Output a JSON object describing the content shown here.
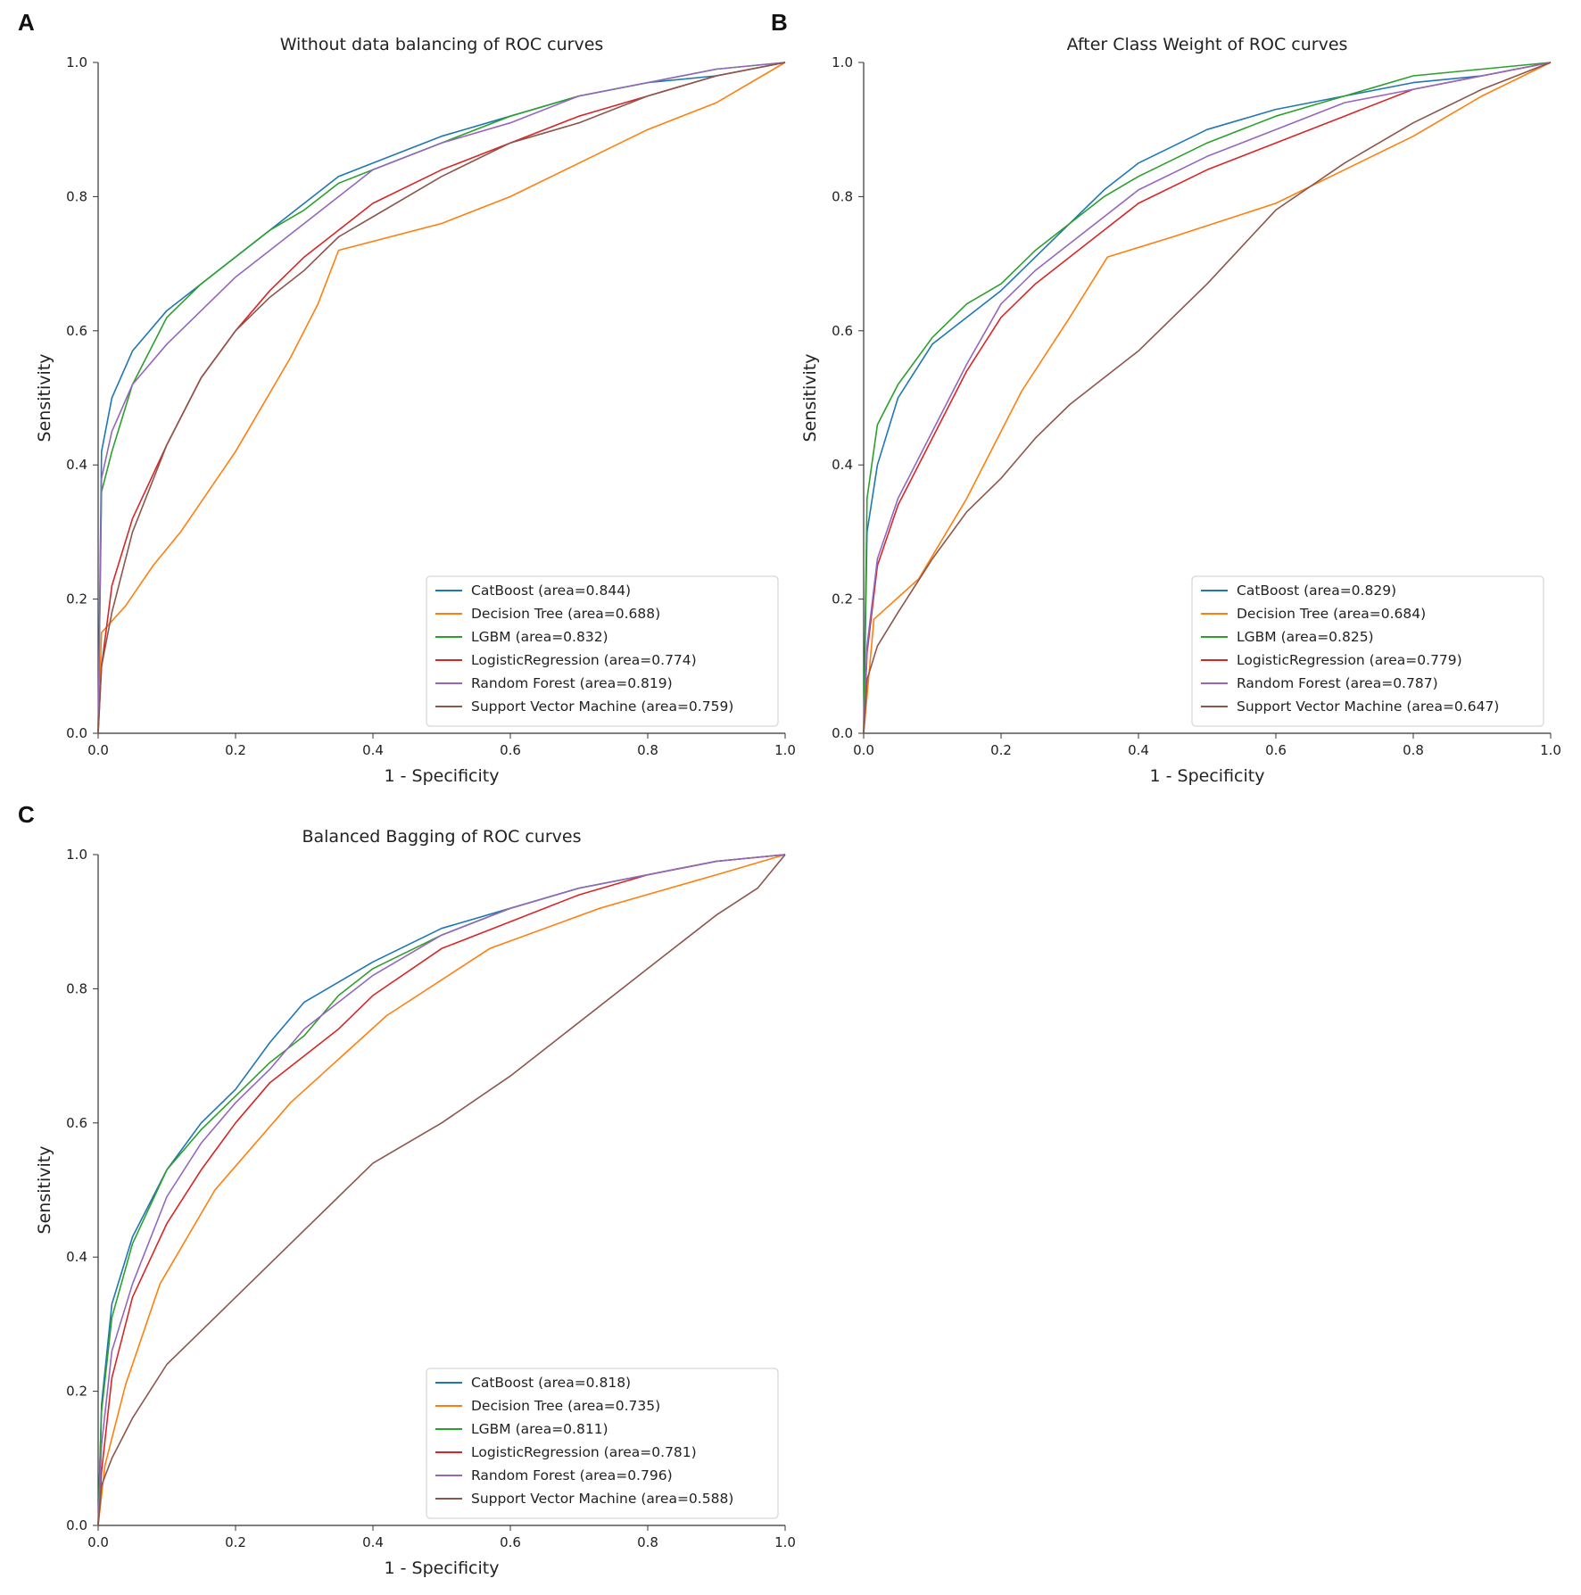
{
  "colors": {
    "CatBoost": "#1f77b4",
    "Decision Tree": "#ff7f0e",
    "LGBM": "#2ca02c",
    "LogisticRegression": "#d62728",
    "Random Forest": "#9467bd",
    "Support Vector Machine": "#8c564b"
  },
  "chart_data": [
    {
      "panel_label": "A",
      "type": "line",
      "title": "Without data balancing of ROC curves",
      "xlabel": "1 - Specificity",
      "ylabel": "Sensitivity",
      "xlim": [
        0,
        1
      ],
      "ylim": [
        0,
        1
      ],
      "xticks": [
        "0.0",
        "0.2",
        "0.4",
        "0.6",
        "0.8",
        "1.0"
      ],
      "yticks": [
        "0.0",
        "0.2",
        "0.4",
        "0.6",
        "0.8",
        "1.0"
      ],
      "legend_position": "lower-right",
      "series": [
        {
          "name": "CatBoost",
          "legend": "CatBoost (area=0.844)",
          "x": [
            0,
            0.005,
            0.02,
            0.05,
            0.1,
            0.15,
            0.2,
            0.25,
            0.3,
            0.35,
            0.4,
            0.5,
            0.6,
            0.7,
            0.8,
            0.9,
            1.0
          ],
          "y": [
            0,
            0.42,
            0.5,
            0.57,
            0.63,
            0.67,
            0.71,
            0.75,
            0.79,
            0.83,
            0.85,
            0.89,
            0.92,
            0.95,
            0.97,
            0.98,
            1.0
          ]
        },
        {
          "name": "Decision Tree",
          "legend": "Decision Tree (area=0.688)",
          "x": [
            0,
            0.005,
            0.04,
            0.08,
            0.12,
            0.2,
            0.28,
            0.32,
            0.35,
            0.5,
            0.6,
            0.7,
            0.8,
            0.9,
            1.0
          ],
          "y": [
            0,
            0.15,
            0.19,
            0.25,
            0.3,
            0.42,
            0.56,
            0.64,
            0.72,
            0.76,
            0.8,
            0.85,
            0.9,
            0.94,
            1.0
          ]
        },
        {
          "name": "LGBM",
          "legend": "LGBM (area=0.832)",
          "x": [
            0,
            0.005,
            0.02,
            0.05,
            0.1,
            0.15,
            0.2,
            0.25,
            0.3,
            0.35,
            0.4,
            0.5,
            0.6,
            0.7,
            0.8,
            0.9,
            1.0
          ],
          "y": [
            0,
            0.36,
            0.42,
            0.52,
            0.62,
            0.67,
            0.71,
            0.75,
            0.78,
            0.82,
            0.84,
            0.88,
            0.92,
            0.95,
            0.97,
            0.99,
            1.0
          ]
        },
        {
          "name": "LogisticRegression",
          "legend": "LogisticRegression (area=0.774)",
          "x": [
            0,
            0.005,
            0.02,
            0.05,
            0.1,
            0.15,
            0.2,
            0.25,
            0.3,
            0.35,
            0.4,
            0.5,
            0.6,
            0.7,
            0.8,
            0.9,
            1.0
          ],
          "y": [
            0,
            0.1,
            0.22,
            0.32,
            0.43,
            0.53,
            0.6,
            0.66,
            0.71,
            0.75,
            0.79,
            0.84,
            0.88,
            0.92,
            0.95,
            0.98,
            1.0
          ]
        },
        {
          "name": "Random Forest",
          "legend": "Random Forest (area=0.819)",
          "x": [
            0,
            0.005,
            0.02,
            0.05,
            0.1,
            0.15,
            0.2,
            0.25,
            0.3,
            0.35,
            0.4,
            0.5,
            0.6,
            0.7,
            0.8,
            0.9,
            1.0
          ],
          "y": [
            0,
            0.38,
            0.45,
            0.52,
            0.58,
            0.63,
            0.68,
            0.72,
            0.76,
            0.8,
            0.84,
            0.88,
            0.91,
            0.95,
            0.97,
            0.99,
            1.0
          ]
        },
        {
          "name": "Support Vector Machine",
          "legend": "Support Vector Machine (area=0.759)",
          "x": [
            0,
            0.005,
            0.02,
            0.05,
            0.1,
            0.15,
            0.2,
            0.25,
            0.3,
            0.35,
            0.4,
            0.5,
            0.6,
            0.7,
            0.8,
            0.9,
            1.0
          ],
          "y": [
            0,
            0.1,
            0.18,
            0.3,
            0.43,
            0.53,
            0.6,
            0.65,
            0.69,
            0.74,
            0.77,
            0.83,
            0.88,
            0.91,
            0.95,
            0.98,
            1.0
          ]
        }
      ]
    },
    {
      "panel_label": "B",
      "type": "line",
      "title": "After Class Weight of ROC curves",
      "xlabel": "1 - Specificity",
      "ylabel": "Sensitivity",
      "xlim": [
        0,
        1
      ],
      "ylim": [
        0,
        1
      ],
      "xticks": [
        "0.0",
        "0.2",
        "0.4",
        "0.6",
        "0.8",
        "1.0"
      ],
      "yticks": [
        "0.0",
        "0.2",
        "0.4",
        "0.6",
        "0.8",
        "1.0"
      ],
      "legend_position": "lower-right",
      "series": [
        {
          "name": "CatBoost",
          "legend": "CatBoost (area=0.829)",
          "x": [
            0,
            0.005,
            0.02,
            0.05,
            0.1,
            0.15,
            0.2,
            0.25,
            0.3,
            0.35,
            0.4,
            0.5,
            0.6,
            0.7,
            0.8,
            0.9,
            1.0
          ],
          "y": [
            0,
            0.3,
            0.4,
            0.5,
            0.58,
            0.62,
            0.66,
            0.71,
            0.76,
            0.81,
            0.85,
            0.9,
            0.93,
            0.95,
            0.97,
            0.98,
            1.0
          ]
        },
        {
          "name": "Decision Tree",
          "legend": "Decision Tree (area=0.684)",
          "x": [
            0,
            0.015,
            0.08,
            0.15,
            0.23,
            0.3,
            0.355,
            0.45,
            0.6,
            0.7,
            0.8,
            0.9,
            1.0
          ],
          "y": [
            0,
            0.17,
            0.23,
            0.35,
            0.51,
            0.62,
            0.71,
            0.74,
            0.79,
            0.84,
            0.89,
            0.95,
            1.0
          ]
        },
        {
          "name": "LGBM",
          "legend": "LGBM (area=0.825)",
          "x": [
            0,
            0.005,
            0.02,
            0.05,
            0.1,
            0.15,
            0.2,
            0.25,
            0.3,
            0.35,
            0.4,
            0.5,
            0.6,
            0.7,
            0.8,
            0.9,
            1.0
          ],
          "y": [
            0,
            0.35,
            0.46,
            0.52,
            0.59,
            0.64,
            0.67,
            0.72,
            0.76,
            0.8,
            0.83,
            0.88,
            0.92,
            0.95,
            0.98,
            0.99,
            1.0
          ]
        },
        {
          "name": "LogisticRegression",
          "legend": "LogisticRegression (area=0.779)",
          "x": [
            0,
            0.005,
            0.02,
            0.05,
            0.1,
            0.15,
            0.2,
            0.25,
            0.3,
            0.35,
            0.4,
            0.5,
            0.6,
            0.7,
            0.8,
            0.9,
            1.0
          ],
          "y": [
            0,
            0.12,
            0.25,
            0.34,
            0.44,
            0.54,
            0.62,
            0.67,
            0.71,
            0.75,
            0.79,
            0.84,
            0.88,
            0.92,
            0.96,
            0.98,
            1.0
          ]
        },
        {
          "name": "Random Forest",
          "legend": "Random Forest (area=0.787)",
          "x": [
            0,
            0.005,
            0.02,
            0.05,
            0.1,
            0.15,
            0.2,
            0.25,
            0.3,
            0.35,
            0.4,
            0.5,
            0.6,
            0.7,
            0.8,
            0.9,
            1.0
          ],
          "y": [
            0,
            0.13,
            0.26,
            0.35,
            0.45,
            0.55,
            0.64,
            0.69,
            0.73,
            0.77,
            0.81,
            0.86,
            0.9,
            0.94,
            0.96,
            0.98,
            1.0
          ]
        },
        {
          "name": "Support Vector Machine",
          "legend": "Support Vector Machine (area=0.647)",
          "x": [
            0,
            0.005,
            0.02,
            0.05,
            0.1,
            0.15,
            0.2,
            0.25,
            0.3,
            0.35,
            0.4,
            0.5,
            0.6,
            0.7,
            0.8,
            0.9,
            1.0
          ],
          "y": [
            0,
            0.08,
            0.13,
            0.18,
            0.26,
            0.33,
            0.38,
            0.44,
            0.49,
            0.53,
            0.57,
            0.67,
            0.78,
            0.85,
            0.91,
            0.96,
            1.0
          ]
        }
      ]
    },
    {
      "panel_label": "C",
      "type": "line",
      "title": "Balanced Bagging of ROC curves",
      "xlabel": "1 - Specificity",
      "ylabel": "Sensitivity",
      "xlim": [
        0,
        1
      ],
      "ylim": [
        0,
        1
      ],
      "xticks": [
        "0.0",
        "0.2",
        "0.4",
        "0.6",
        "0.8",
        "1.0"
      ],
      "yticks": [
        "0.0",
        "0.2",
        "0.4",
        "0.6",
        "0.8",
        "1.0"
      ],
      "legend_position": "lower-right",
      "series": [
        {
          "name": "CatBoost",
          "legend": "CatBoost (area=0.818)",
          "x": [
            0,
            0.005,
            0.02,
            0.05,
            0.1,
            0.15,
            0.2,
            0.25,
            0.3,
            0.35,
            0.4,
            0.5,
            0.6,
            0.7,
            0.8,
            0.9,
            1.0
          ],
          "y": [
            0,
            0.18,
            0.33,
            0.43,
            0.53,
            0.6,
            0.65,
            0.72,
            0.78,
            0.81,
            0.84,
            0.89,
            0.92,
            0.95,
            0.97,
            0.99,
            1.0
          ]
        },
        {
          "name": "Decision Tree",
          "legend": "Decision Tree (area=0.735)",
          "x": [
            0,
            0.01,
            0.04,
            0.09,
            0.17,
            0.28,
            0.42,
            0.57,
            0.73,
            0.9,
            1.0
          ],
          "y": [
            0,
            0.09,
            0.21,
            0.36,
            0.5,
            0.63,
            0.76,
            0.86,
            0.92,
            0.97,
            1.0
          ]
        },
        {
          "name": "LGBM",
          "legend": "LGBM (area=0.811)",
          "x": [
            0,
            0.005,
            0.02,
            0.05,
            0.1,
            0.15,
            0.2,
            0.25,
            0.3,
            0.35,
            0.4,
            0.5,
            0.6,
            0.7,
            0.8,
            0.9,
            1.0
          ],
          "y": [
            0,
            0.17,
            0.31,
            0.42,
            0.53,
            0.59,
            0.64,
            0.69,
            0.73,
            0.79,
            0.83,
            0.88,
            0.92,
            0.95,
            0.97,
            0.99,
            1.0
          ]
        },
        {
          "name": "LogisticRegression",
          "legend": "LogisticRegression (area=0.781)",
          "x": [
            0,
            0.005,
            0.02,
            0.05,
            0.1,
            0.15,
            0.2,
            0.25,
            0.3,
            0.35,
            0.4,
            0.5,
            0.6,
            0.7,
            0.8,
            0.9,
            1.0
          ],
          "y": [
            0,
            0.08,
            0.22,
            0.34,
            0.45,
            0.53,
            0.6,
            0.66,
            0.7,
            0.74,
            0.79,
            0.86,
            0.9,
            0.94,
            0.97,
            0.99,
            1.0
          ]
        },
        {
          "name": "Random Forest",
          "legend": "Random Forest (area=0.796)",
          "x": [
            0,
            0.005,
            0.02,
            0.05,
            0.1,
            0.15,
            0.2,
            0.25,
            0.3,
            0.35,
            0.4,
            0.5,
            0.6,
            0.7,
            0.8,
            0.9,
            1.0
          ],
          "y": [
            0,
            0.12,
            0.26,
            0.36,
            0.49,
            0.57,
            0.63,
            0.68,
            0.74,
            0.78,
            0.82,
            0.88,
            0.92,
            0.95,
            0.97,
            0.99,
            1.0
          ]
        },
        {
          "name": "Support Vector Machine",
          "legend": "Support Vector Machine (area=0.588)",
          "x": [
            0,
            0.005,
            0.02,
            0.05,
            0.1,
            0.15,
            0.2,
            0.25,
            0.3,
            0.35,
            0.4,
            0.5,
            0.6,
            0.7,
            0.8,
            0.9,
            0.96,
            1.0
          ],
          "y": [
            0,
            0.06,
            0.1,
            0.16,
            0.24,
            0.29,
            0.34,
            0.39,
            0.44,
            0.49,
            0.54,
            0.6,
            0.67,
            0.75,
            0.83,
            0.91,
            0.95,
            1.0
          ]
        }
      ]
    }
  ]
}
